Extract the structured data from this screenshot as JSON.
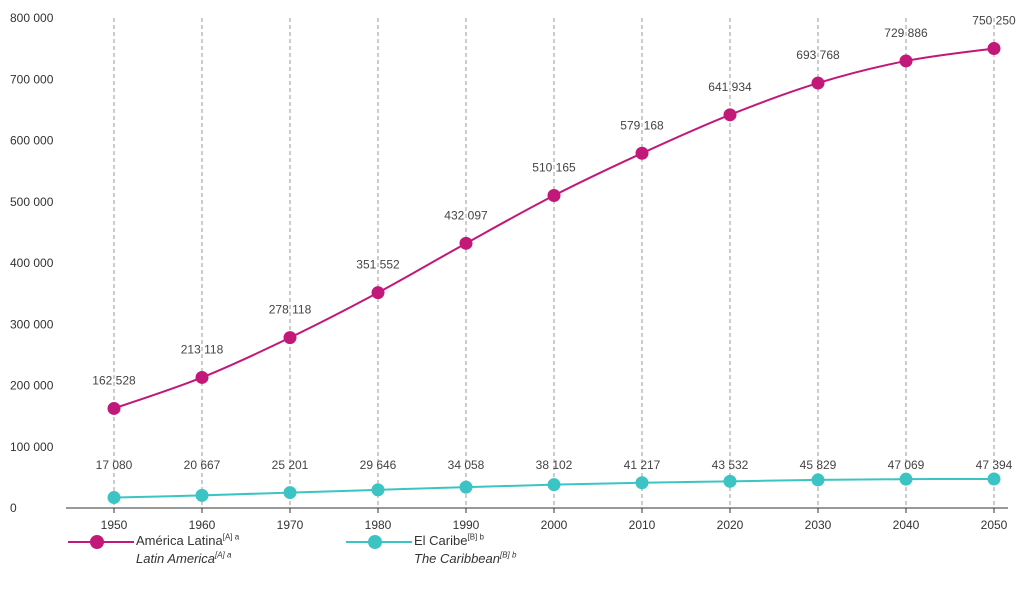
{
  "chart_data": {
    "type": "line",
    "categories": [
      "1950",
      "1960",
      "1970",
      "1980",
      "1990",
      "2000",
      "2010",
      "2020",
      "2030",
      "2040",
      "2050"
    ],
    "ylim": [
      0,
      800000
    ],
    "yticks": [
      0,
      100000,
      200000,
      300000,
      400000,
      500000,
      600000,
      700000,
      800000
    ],
    "ytick_labels": [
      "0",
      "100 000",
      "200 000",
      "300 000",
      "400 000",
      "500 000",
      "600 000",
      "700 000",
      "800 000"
    ],
    "grid": "vertical dashed",
    "legend_position": "bottom-left",
    "series": [
      {
        "name": "América Latina",
        "name_sup": "[A] a",
        "name_en": "Latin America",
        "name_en_sup": "[A] a",
        "color": "#c2187a",
        "values": [
          162528,
          213118,
          278118,
          351552,
          432097,
          510165,
          579168,
          641934,
          693768,
          729886,
          750250
        ],
        "labels": [
          "162 528",
          "213 118",
          "278 118",
          "351 552",
          "432 097",
          "510 165",
          "579 168",
          "641 934",
          "693 768",
          "729 886",
          "750 250"
        ]
      },
      {
        "name": "El Caribe",
        "name_sup": "[B] b",
        "name_en": "The Caribbean",
        "name_en_sup": "[B] b",
        "color": "#3cc4c4",
        "values": [
          17080,
          20667,
          25201,
          29646,
          34058,
          38102,
          41217,
          43532,
          45829,
          47069,
          47394
        ],
        "labels": [
          "17 080",
          "20 667",
          "25 201",
          "29 646",
          "34 058",
          "38 102",
          "41 217",
          "43 532",
          "45 829",
          "47 069",
          "47 394"
        ]
      }
    ]
  }
}
